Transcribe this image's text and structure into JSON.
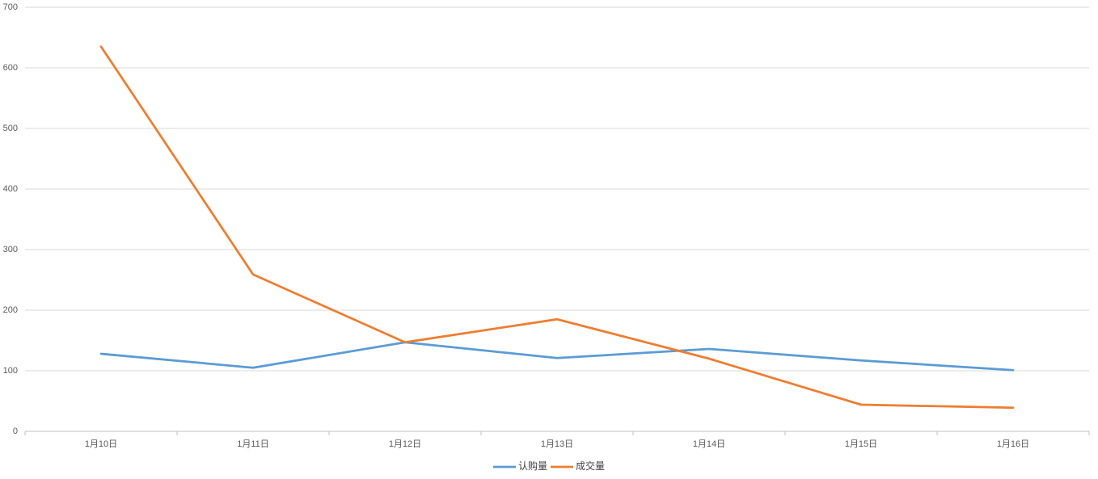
{
  "chart_data": {
    "type": "line",
    "categories": [
      "1月10日",
      "1月11日",
      "1月12日",
      "1月13日",
      "1月14日",
      "1月15日",
      "1月16日"
    ],
    "series": [
      {
        "name": "认购量",
        "color": "#5b9bd5",
        "values": [
          128,
          105,
          147,
          121,
          136,
          117,
          101
        ]
      },
      {
        "name": "成交量",
        "color": "#ed7d31",
        "values": [
          635,
          259,
          147,
          185,
          120,
          44,
          39
        ]
      }
    ],
    "ylim": [
      0,
      700
    ],
    "yticks": [
      0,
      100,
      200,
      300,
      400,
      500,
      600,
      700
    ],
    "grid": true,
    "legend": "bottom"
  }
}
